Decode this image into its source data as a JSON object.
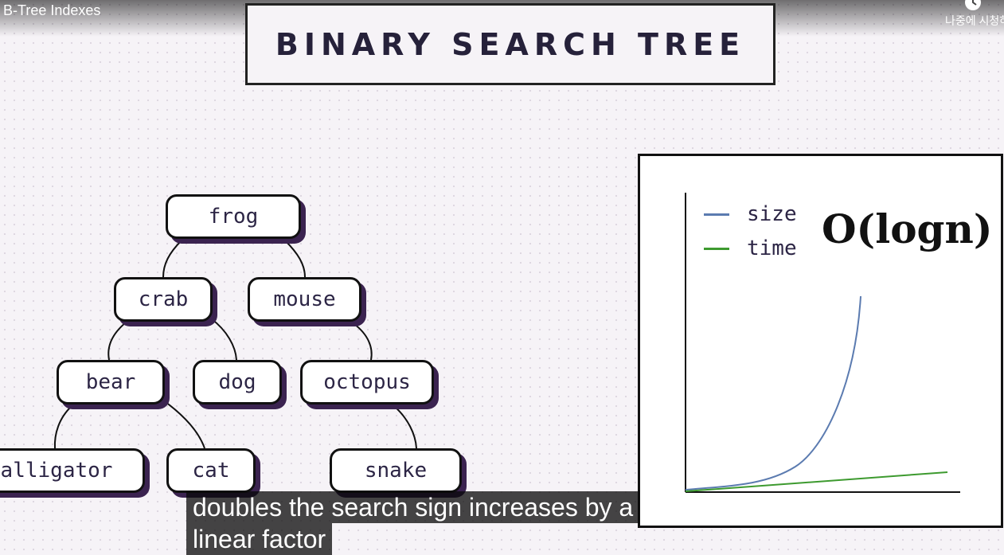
{
  "video": {
    "title": "B-Tree Indexes",
    "watch_later_label": "나중에 시청하기"
  },
  "slide": {
    "heading": "BINARY SEARCH TREE",
    "tree_nodes": [
      "frog",
      "crab",
      "mouse",
      "bear",
      "dog",
      "octopus",
      "alligator",
      "cat",
      "snake"
    ],
    "legend": [
      {
        "label": "size",
        "color": "#5b7bb0"
      },
      {
        "label": "time",
        "color": "#3d9a2f"
      }
    ],
    "complexity": "O(logn)"
  },
  "chart_data": {
    "type": "line",
    "series": [
      {
        "name": "size",
        "color": "#5b7bb0",
        "shape": "exponential"
      },
      {
        "name": "time",
        "color": "#3d9a2f",
        "shape": "linear"
      }
    ],
    "grid": false,
    "legend_position": "top-left"
  },
  "captions": {
    "line1": "doubles the search sign increases by a",
    "line2": "linear factor"
  },
  "colors": {
    "node_text": "#2c2545",
    "node_shadow": "#3b2350",
    "heading_text": "#26213a"
  }
}
